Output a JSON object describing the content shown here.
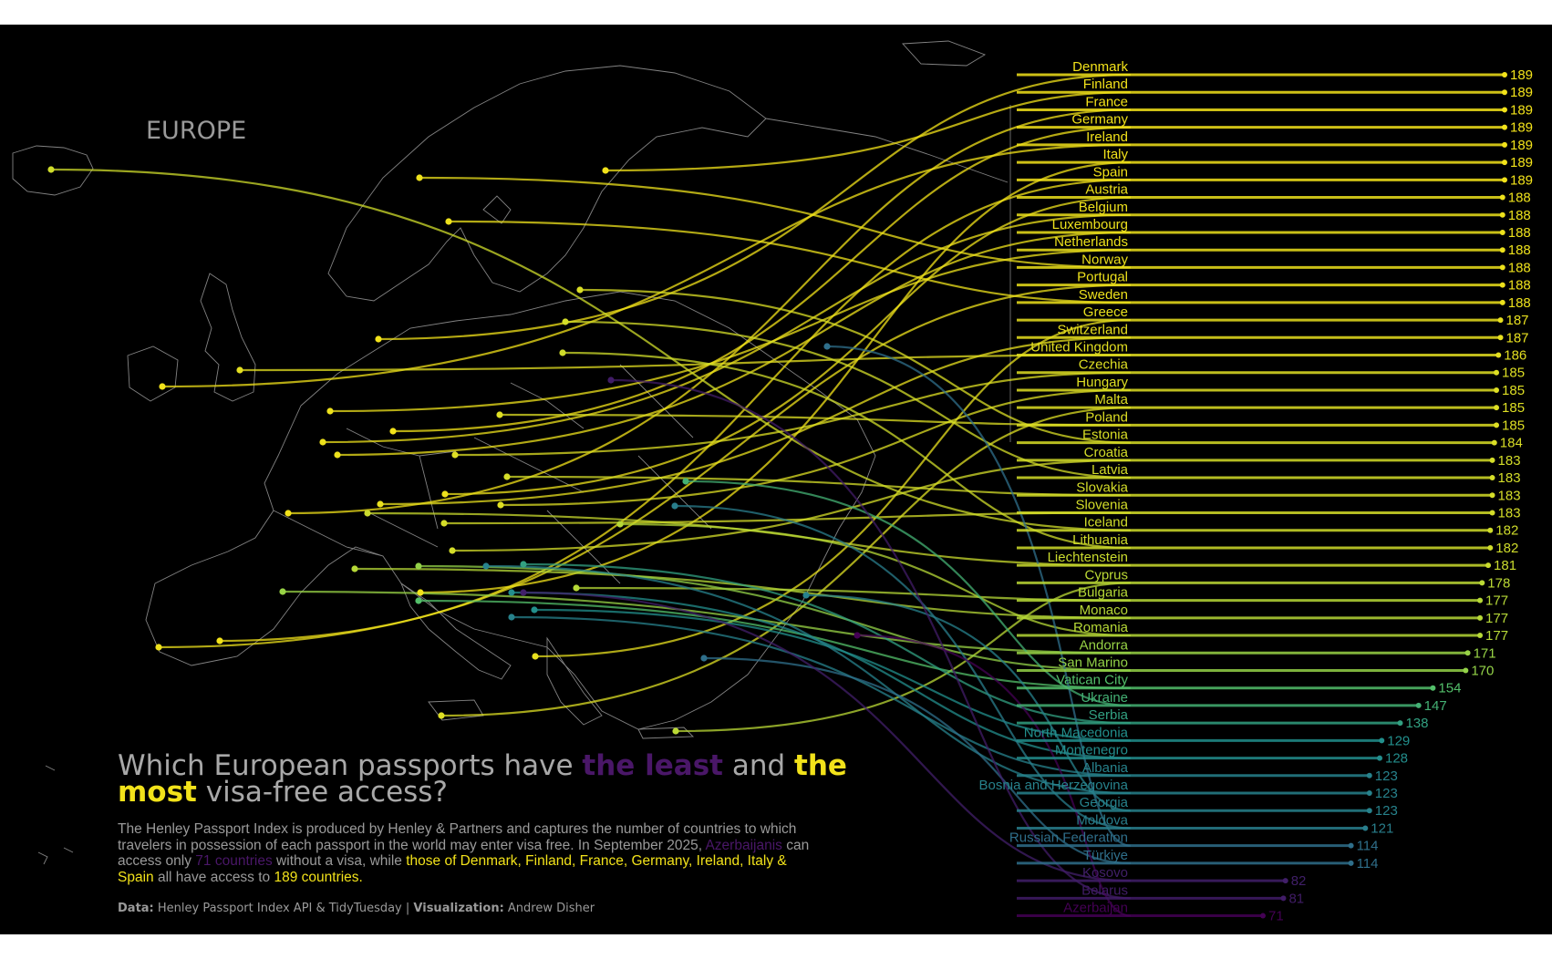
{
  "region_label": "EUROPE",
  "title": {
    "part1": "Which European passports have ",
    "least": "the least",
    "part2": " and ",
    "most_a": "the",
    "most_b": "most",
    "part3": " visa-free access?"
  },
  "subtitle": {
    "s1": "The Henley Passport Index is produced by Henley & Partners and captures the number of countries to which travelers in possession of each passport in the world may enter visa free. In September 2025, ",
    "azerbaijanis": "Azerbaijanis",
    "s2": " can access only ",
    "count71": "71 countries",
    "s3": " without a visa, while ",
    "those_of": "those of Denmark, Finland, France, Germany, Ireland, Italy & Spain",
    "s4": " all have access to ",
    "count189": "189 countries."
  },
  "caption": {
    "data_label": "Data:",
    "data_value": " Henley Passport Index API & TidyTuesday | ",
    "viz_label": "Visualization:",
    "viz_value": " Andrew Disher"
  },
  "colors": {
    "background": "#000000",
    "high": "#f2e21a",
    "low": "#440154",
    "map_outline": "#9a9a9a"
  },
  "chart_data": {
    "type": "bar",
    "title": "Which European passports have the least and the most visa-free access?",
    "value_label": "visa-free destinations",
    "categories": [
      "Denmark",
      "Finland",
      "France",
      "Germany",
      "Ireland",
      "Italy",
      "Spain",
      "Austria",
      "Belgium",
      "Luxembourg",
      "Netherlands",
      "Norway",
      "Portugal",
      "Sweden",
      "Greece",
      "Switzerland",
      "United Kingdom",
      "Czechia",
      "Hungary",
      "Malta",
      "Poland",
      "Estonia",
      "Croatia",
      "Latvia",
      "Slovakia",
      "Slovenia",
      "Iceland",
      "Lithuania",
      "Liechtenstein",
      "Cyprus",
      "Bulgaria",
      "Monaco",
      "Romania",
      "Andorra",
      "San Marino",
      "Vatican City",
      "Ukraine",
      "Serbia",
      "North Macedonia",
      "Montenegro",
      "Albania",
      "Bosnia and Herzegovina",
      "Georgia",
      "Moldova",
      "Russian Federation",
      "Türkiye",
      "Kosovo",
      "Belarus",
      "Azerbaijan"
    ],
    "values": [
      189,
      189,
      189,
      189,
      189,
      189,
      189,
      188,
      188,
      188,
      188,
      188,
      188,
      188,
      187,
      187,
      186,
      185,
      185,
      185,
      185,
      184,
      183,
      183,
      183,
      183,
      182,
      182,
      181,
      178,
      177,
      177,
      177,
      171,
      170,
      154,
      147,
      138,
      129,
      128,
      123,
      123,
      123,
      121,
      114,
      114,
      82,
      81,
      71
    ],
    "value_labels": [
      "189",
      "189",
      "189",
      "189",
      "189",
      "189",
      "189",
      "188",
      "188",
      "188",
      "188",
      "188",
      "188",
      "188",
      "187",
      "187",
      "186",
      "185",
      "185",
      "185",
      "185",
      "184",
      "183",
      "183",
      "183",
      "183",
      "182",
      "182",
      "181",
      "178",
      "177",
      "177",
      "177",
      "171",
      "170",
      "154",
      "147",
      "138",
      "129",
      "128",
      "123",
      "123",
      "123",
      "121",
      "114",
      "114",
      "82",
      "81",
      "71"
    ],
    "color_scale": "viridis",
    "map_background": "Europe"
  }
}
